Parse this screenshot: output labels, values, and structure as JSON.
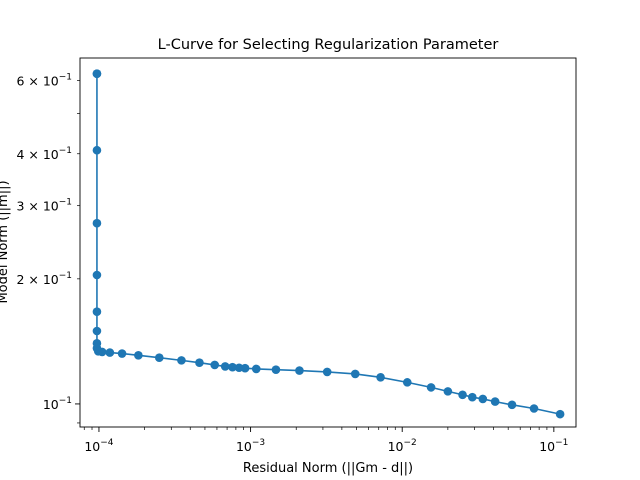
{
  "chart_data": {
    "type": "line",
    "title": "L-Curve for Selecting Regularization Parameter",
    "xlabel": "Residual Norm (||Gm - d||)",
    "ylabel": "Model Norm (||m||)",
    "xscale": "log",
    "yscale": "log",
    "xlim": [
      7.5e-05,
      0.14
    ],
    "ylim": [
      0.088,
      0.68
    ],
    "grid": false,
    "marker": "circle",
    "line_color": "#1f77b4",
    "marker_color": "#1f77b4",
    "x_ticks": [
      {
        "value": 0.0001,
        "base": "10",
        "exp": "−4"
      },
      {
        "value": 0.001,
        "base": "10",
        "exp": "−3"
      },
      {
        "value": 0.01,
        "base": "10",
        "exp": "−2"
      },
      {
        "value": 0.1,
        "base": "10",
        "exp": "−1"
      }
    ],
    "y_ticks": [
      {
        "value": 0.1,
        "base": "10",
        "exp": "−1",
        "mantissa": ""
      },
      {
        "value": 0.2,
        "base": "10",
        "exp": "−1",
        "mantissa": "2 × "
      },
      {
        "value": 0.3,
        "base": "10",
        "exp": "−1",
        "mantissa": "3 × "
      },
      {
        "value": 0.4,
        "base": "10",
        "exp": "−1",
        "mantissa": "4 × "
      },
      {
        "value": 0.6,
        "base": "10",
        "exp": "−1",
        "mantissa": "6 × "
      }
    ],
    "series": [
      {
        "x": [
          0.11,
          0.074,
          0.053,
          0.041,
          0.034,
          0.029,
          0.025,
          0.02,
          0.0155,
          0.0108,
          0.0072,
          0.0049,
          0.0032,
          0.0021,
          0.00147,
          0.00109,
          0.00092,
          0.00084,
          0.00076,
          0.00068,
          0.00058,
          0.00046,
          0.00035,
          0.00025,
          0.000182,
          0.000142,
          0.000118,
          0.000105,
          9.9e-05,
          9.7e-05,
          9.7e-05,
          9.7e-05,
          9.7e-05,
          9.7e-05,
          9.7e-05,
          9.7e-05,
          9.7e-05,
          9.7e-05
        ],
        "y": [
          0.0945,
          0.0975,
          0.0995,
          0.1013,
          0.1028,
          0.1038,
          0.1052,
          0.1072,
          0.1096,
          0.1127,
          0.1159,
          0.1181,
          0.1194,
          0.1203,
          0.1209,
          0.1214,
          0.1219,
          0.1222,
          0.1226,
          0.1231,
          0.1241,
          0.1257,
          0.1273,
          0.1292,
          0.1309,
          0.1322,
          0.1329,
          0.1334,
          0.1338,
          0.1362,
          0.1399,
          0.1498,
          0.1667,
          0.2043,
          0.2722,
          0.4079,
          0.6233,
          0.6233
        ]
      }
    ]
  }
}
